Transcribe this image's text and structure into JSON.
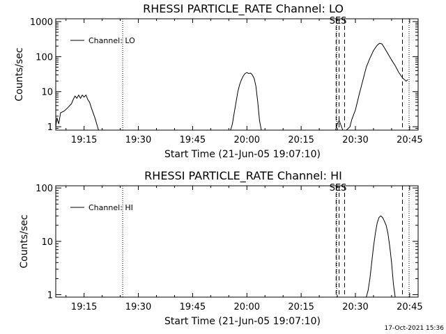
{
  "footer": {
    "timestamp": "17-Oct-2021 15:36"
  },
  "chart_data": [
    {
      "type": "line",
      "title": "RHESSI PARTICLE_RATE Channel: LO",
      "xlabel": "Start Time (21-Jun-05 19:07:10)",
      "ylabel": "Counts/sec",
      "yscale": "log",
      "xlim": [
        "19:07:10",
        "20:47:20"
      ],
      "ylim": [
        0.8,
        1200
      ],
      "x_ticks": [
        "19:15",
        "19:30",
        "19:45",
        "20:00",
        "20:15",
        "20:30",
        "20:45"
      ],
      "y_ticks": [
        "1",
        "10",
        "100",
        "1000"
      ],
      "legend": {
        "position": "top-left",
        "label": "Channel: LO",
        "color": "#000000"
      },
      "annotation": {
        "text": "SES",
        "at": "20:25:00"
      },
      "vlines": [
        {
          "x": "19:25:40",
          "style": "dotted"
        },
        {
          "x": "20:24:50",
          "style": "dotted"
        },
        {
          "x": "20:24:40",
          "style": "dashed"
        },
        {
          "x": "20:25:30",
          "style": "dashed"
        },
        {
          "x": "20:27:00",
          "style": "dashed"
        },
        {
          "x": "20:43:00",
          "style": "dashed"
        },
        {
          "x": "20:44:50",
          "style": "dotted"
        }
      ],
      "series": [
        {
          "name": "Channel: LO",
          "color": "#000000",
          "segments": [
            [
              [
                "19:07:10",
                1.0
              ],
              [
                "19:07:30",
                1.8
              ],
              [
                "19:08:00",
                1.2
              ],
              [
                "19:08:30",
                2.5
              ],
              [
                "19:09:30",
                2.8
              ],
              [
                "19:10:30",
                3.5
              ],
              [
                "19:11:30",
                4.5
              ],
              [
                "19:12:00",
                6.0
              ],
              [
                "19:12:30",
                7.5
              ],
              [
                "19:13:00",
                6.5
              ],
              [
                "19:13:30",
                8.0
              ],
              [
                "19:14:00",
                6.5
              ],
              [
                "19:14:30",
                8.0
              ],
              [
                "19:15:00",
                7.0
              ],
              [
                "19:15:30",
                8.0
              ],
              [
                "19:16:00",
                6.0
              ],
              [
                "19:16:30",
                5.0
              ],
              [
                "19:17:00",
                3.5
              ],
              [
                "19:17:30",
                2.5
              ],
              [
                "19:18:00",
                1.8
              ],
              [
                "19:18:30",
                1.2
              ],
              [
                "19:19:00",
                0.8
              ]
            ],
            [
              [
                "19:55:30",
                0.8
              ],
              [
                "19:56:00",
                1.2
              ],
              [
                "19:56:30",
                2.5
              ],
              [
                "19:57:00",
                5.0
              ],
              [
                "19:57:30",
                10.0
              ],
              [
                "19:58:00",
                16.0
              ],
              [
                "19:58:30",
                22.0
              ],
              [
                "19:59:00",
                28.0
              ],
              [
                "19:59:30",
                33.0
              ],
              [
                "20:00:00",
                35.0
              ],
              [
                "20:00:30",
                33.0
              ],
              [
                "20:01:00",
                34.0
              ],
              [
                "20:01:30",
                30.0
              ],
              [
                "20:02:00",
                24.0
              ],
              [
                "20:02:30",
                14.0
              ],
              [
                "20:03:00",
                5.0
              ],
              [
                "20:03:30",
                1.5
              ],
              [
                "20:04:00",
                0.8
              ]
            ],
            [
              [
                "20:24:30",
                0.8
              ],
              [
                "20:25:00",
                1.2
              ],
              [
                "20:25:30",
                1.5
              ],
              [
                "20:26:00",
                1.1
              ],
              [
                "20:26:30",
                0.8
              ]
            ],
            [
              [
                "20:27:30",
                0.8
              ],
              [
                "20:28:30",
                1.0
              ],
              [
                "20:29:00",
                1.6
              ],
              [
                "20:30:00",
                3.0
              ],
              [
                "20:31:00",
                8.0
              ],
              [
                "20:32:00",
                20.0
              ],
              [
                "20:33:00",
                50.0
              ],
              [
                "20:34:00",
                90.0
              ],
              [
                "20:35:00",
                150.0
              ],
              [
                "20:36:00",
                210.0
              ],
              [
                "20:36:40",
                240.0
              ],
              [
                "20:37:20",
                230.0
              ],
              [
                "20:38:00",
                180.0
              ],
              [
                "20:39:00",
                120.0
              ],
              [
                "20:40:00",
                80.0
              ],
              [
                "20:41:00",
                55.0
              ],
              [
                "20:42:00",
                35.0
              ],
              [
                "20:43:00",
                25.0
              ],
              [
                "20:44:00",
                20.0
              ],
              [
                "20:44:30",
                22.0
              ]
            ]
          ]
        }
      ]
    },
    {
      "type": "line",
      "title": "RHESSI PARTICLE_RATE Channel: HI",
      "xlabel": "Start Time (21-Jun-05 19:07:10)",
      "ylabel": "Counts/sec",
      "yscale": "log",
      "xlim": [
        "19:07:10",
        "20:47:20"
      ],
      "ylim": [
        0.9,
        110
      ],
      "x_ticks": [
        "19:15",
        "19:30",
        "19:45",
        "20:00",
        "20:15",
        "20:30",
        "20:45"
      ],
      "y_ticks": [
        "1",
        "10",
        "100"
      ],
      "legend": {
        "position": "top-left",
        "label": "Channel: HI",
        "color": "#000000"
      },
      "annotation": {
        "text": "SES",
        "at": "20:25:00"
      },
      "vlines": [
        {
          "x": "19:25:40",
          "style": "dotted"
        },
        {
          "x": "20:24:50",
          "style": "dotted"
        },
        {
          "x": "20:24:40",
          "style": "dashed"
        },
        {
          "x": "20:25:30",
          "style": "dashed"
        },
        {
          "x": "20:27:00",
          "style": "dashed"
        },
        {
          "x": "20:43:00",
          "style": "dashed"
        },
        {
          "x": "20:44:50",
          "style": "dotted"
        }
      ],
      "series": [
        {
          "name": "Channel: HI",
          "color": "#000000",
          "segments": [
            [
              [
                "20:33:00",
                0.9
              ],
              [
                "20:33:30",
                1.2
              ],
              [
                "20:34:00",
                2.0
              ],
              [
                "20:34:30",
                4.0
              ],
              [
                "20:35:00",
                8.0
              ],
              [
                "20:35:30",
                14.0
              ],
              [
                "20:36:00",
                22.0
              ],
              [
                "20:36:30",
                28.0
              ],
              [
                "20:37:00",
                30.0
              ],
              [
                "20:37:30",
                28.0
              ],
              [
                "20:38:00",
                24.0
              ],
              [
                "20:38:30",
                20.0
              ],
              [
                "20:39:00",
                14.0
              ],
              [
                "20:39:30",
                8.0
              ],
              [
                "20:40:00",
                4.0
              ],
              [
                "20:40:30",
                1.6
              ],
              [
                "20:41:00",
                0.9
              ]
            ]
          ]
        }
      ]
    }
  ]
}
